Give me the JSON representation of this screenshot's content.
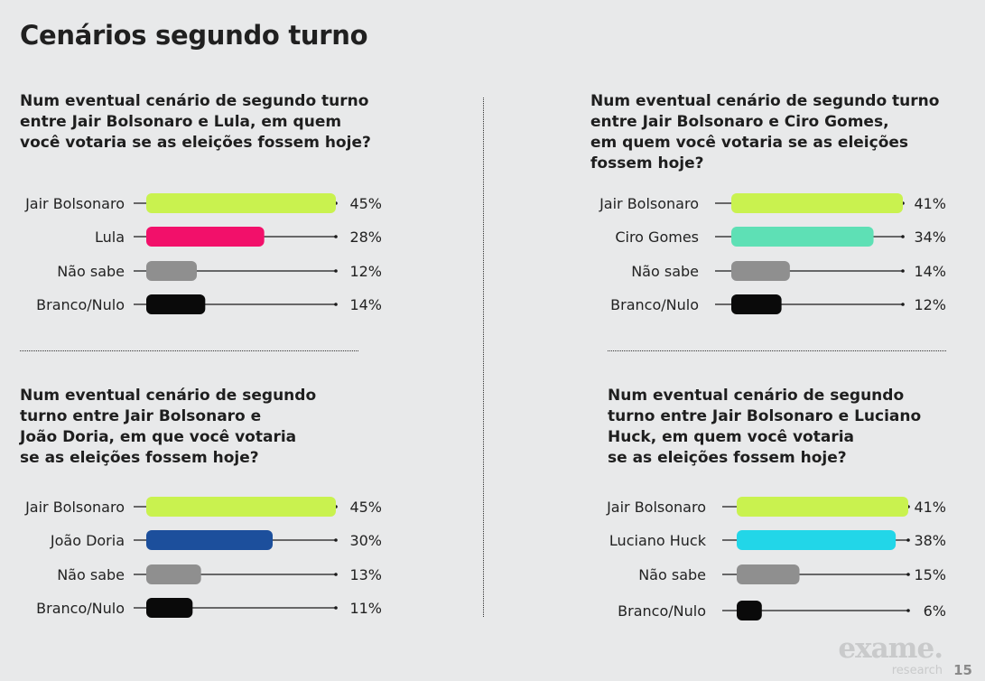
{
  "page": {
    "title": "Cenários segundo turno",
    "number": "15"
  },
  "brand": {
    "logo_text": "exame.",
    "logo_sub": "research"
  },
  "colors": {
    "bolsonaro": "#c9f24f",
    "lula": "#f2106a",
    "ciro": "#5ee0b5",
    "doria": "#1c4f9c",
    "huck": "#22d6e8",
    "nao_sabe": "#8f8f8f",
    "branco_nulo": "#0a0a0a"
  },
  "chart_data": [
    {
      "type": "bar",
      "orientation": "horizontal",
      "title": "Num eventual cenário de segundo turno\nentre Jair Bolsonaro e Lula, em quem\nvocê votaria se as eleições fossem hoje?",
      "categories": [
        "Jair Bolsonaro",
        "Lula",
        "Não sabe",
        "Branco/Nulo"
      ],
      "values": [
        45,
        28,
        12,
        14
      ],
      "value_labels": [
        "45%",
        "28%",
        "12%",
        "14%"
      ],
      "color_keys": [
        "bolsonaro",
        "lula",
        "nao_sabe",
        "branco_nulo"
      ],
      "xlim": [
        0,
        45
      ]
    },
    {
      "type": "bar",
      "orientation": "horizontal",
      "title": "Num eventual cenário de segundo turno\nentre Jair Bolsonaro e Ciro Gomes,\nem quem você votaria se as eleições\nfossem hoje?",
      "categories": [
        "Jair Bolsonaro",
        "Ciro Gomes",
        "Não sabe",
        "Branco/Nulo"
      ],
      "values": [
        41,
        34,
        14,
        12
      ],
      "value_labels": [
        "41%",
        "34%",
        "14%",
        "12%"
      ],
      "color_keys": [
        "bolsonaro",
        "ciro",
        "nao_sabe",
        "branco_nulo"
      ],
      "xlim": [
        0,
        41
      ]
    },
    {
      "type": "bar",
      "orientation": "horizontal",
      "title": "Num eventual cenário de segundo\nturno entre Jair Bolsonaro e\nJoão Doria, em que você votaria\nse as eleições fossem hoje?",
      "categories": [
        "Jair Bolsonaro",
        "João Doria",
        "Não sabe",
        "Branco/Nulo"
      ],
      "values": [
        45,
        30,
        13,
        11
      ],
      "value_labels": [
        "45%",
        "30%",
        "13%",
        "11%"
      ],
      "color_keys": [
        "bolsonaro",
        "doria",
        "nao_sabe",
        "branco_nulo"
      ],
      "xlim": [
        0,
        45
      ]
    },
    {
      "type": "bar",
      "orientation": "horizontal",
      "title": "Num eventual cenário de segundo\nturno entre Jair Bolsonaro e Luciano\nHuck, em quem você votaria\nse as eleições fossem hoje?",
      "categories": [
        "Jair Bolsonaro",
        "Luciano Huck",
        "Não sabe",
        "Branco/Nulo"
      ],
      "values": [
        41,
        38,
        15,
        6
      ],
      "value_labels": [
        "41%",
        "38%",
        "15%",
        "6%"
      ],
      "color_keys": [
        "bolsonaro",
        "huck",
        "nao_sabe",
        "branco_nulo"
      ],
      "xlim": [
        0,
        41
      ]
    }
  ]
}
